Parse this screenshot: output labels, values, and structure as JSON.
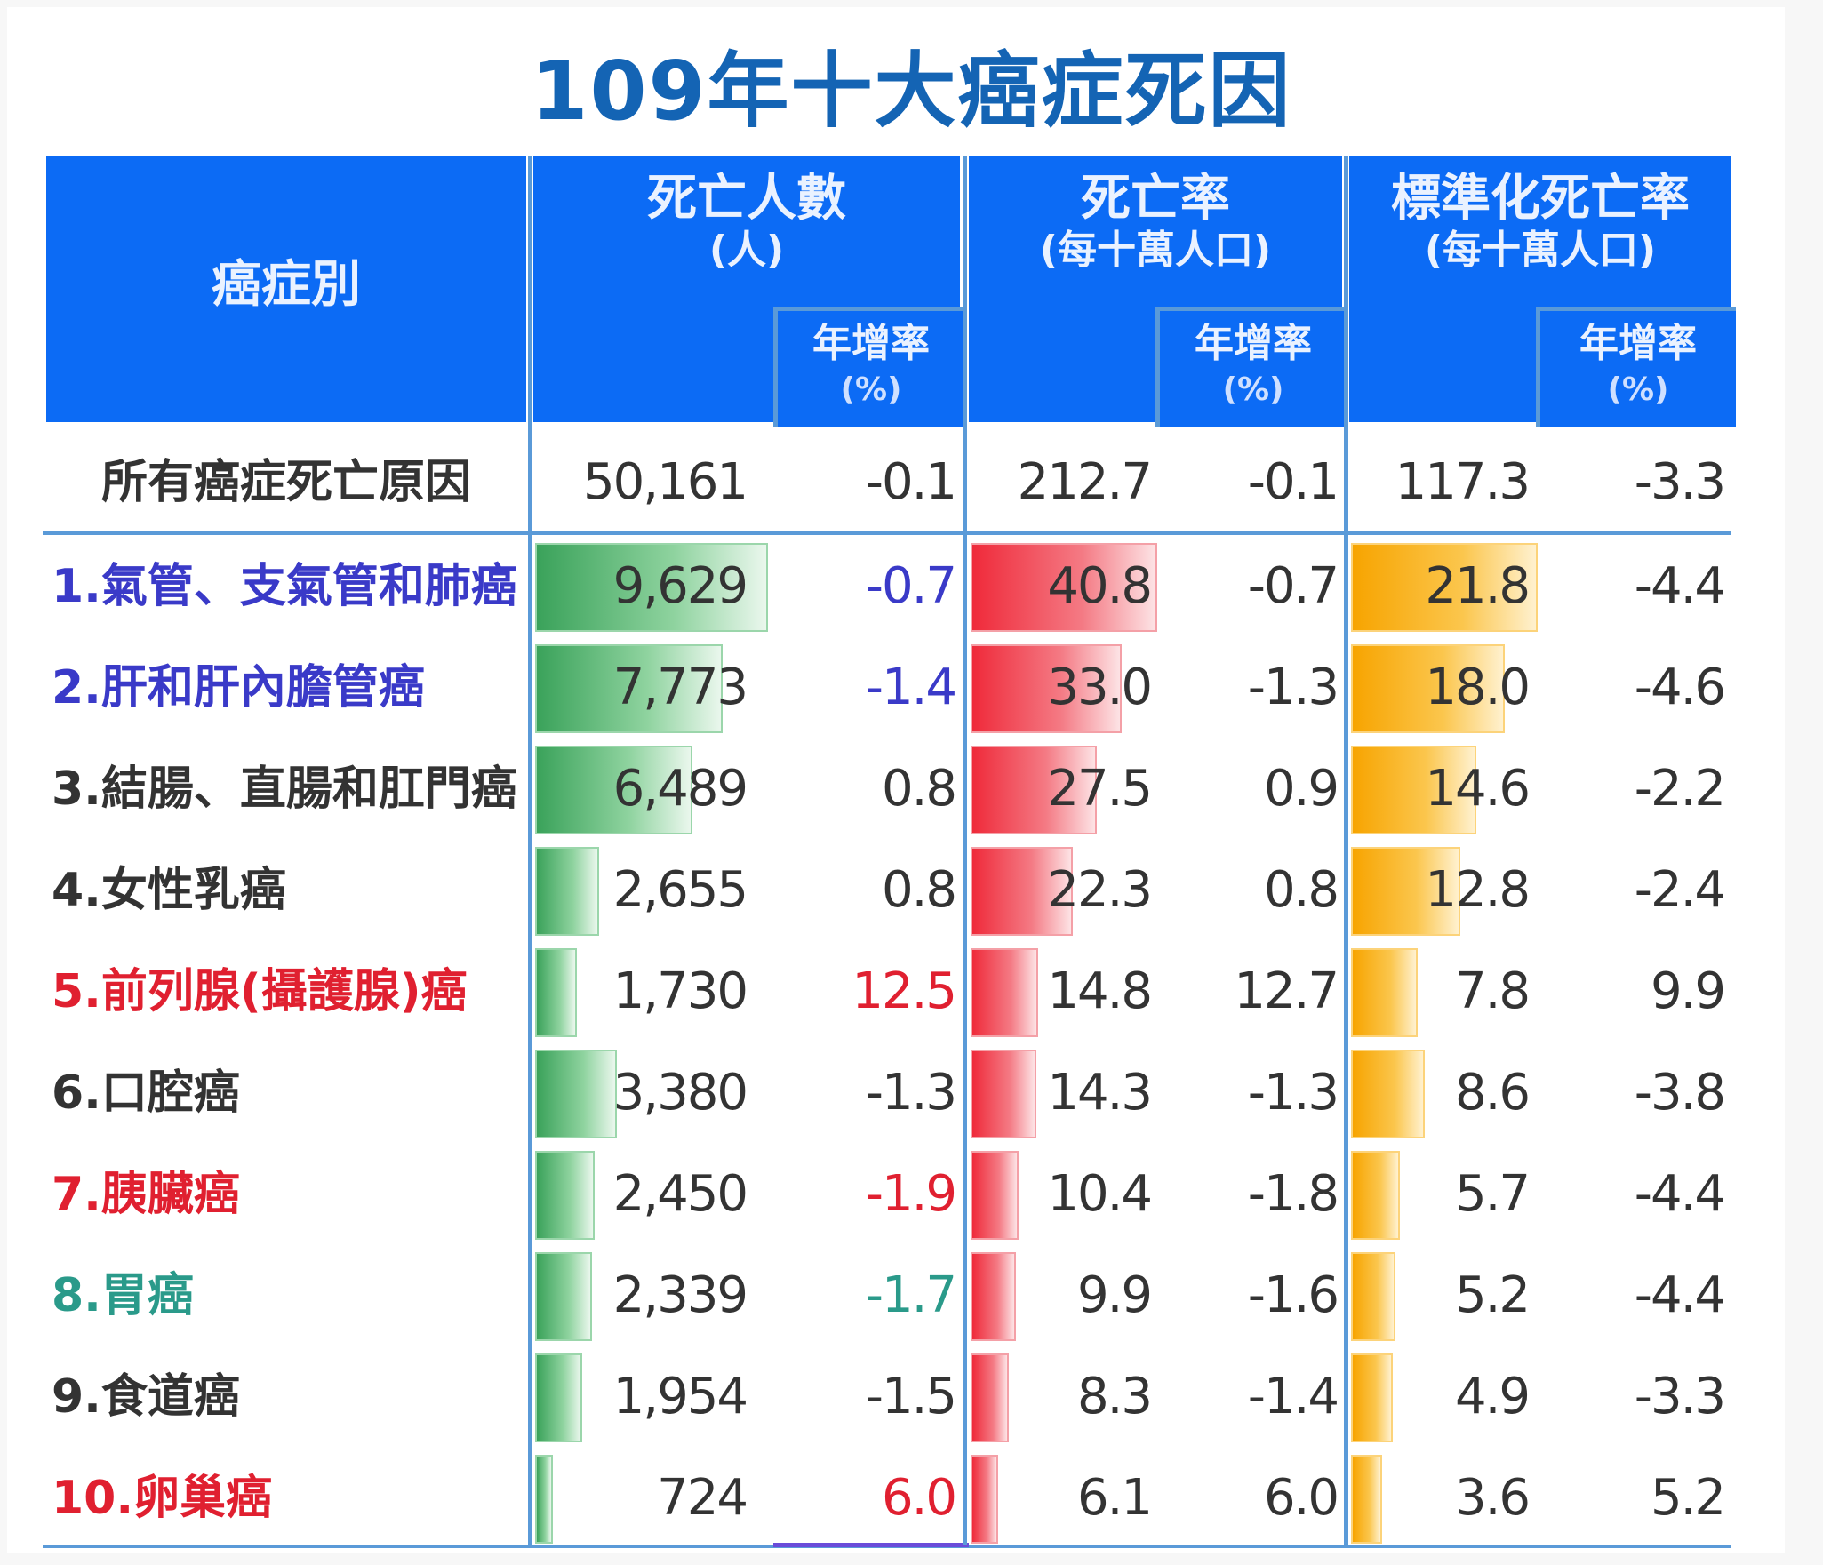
{
  "title": "109年十大癌症死因",
  "colors": {
    "header_bg": "#0c6bf5",
    "title": "#1464b4",
    "green_bar": "#3aa25a",
    "red_bar": "#ef2a3a",
    "orange_bar": "#f7a400",
    "name_blue": "#3a3ac8",
    "name_red": "#e02030",
    "name_teal": "#2a9a8a",
    "text_default": "#333333"
  },
  "headers": {
    "cancer_type": "癌症別",
    "deaths": {
      "line1": "死亡人數",
      "line2": "(人)"
    },
    "rate": {
      "line1": "死亡率",
      "line2": "(每十萬人口)"
    },
    "std_rate": {
      "line1": "標準化死亡率",
      "line2": "(每十萬人口)"
    },
    "growth": {
      "line1": "年增率",
      "line2": "(%)"
    }
  },
  "total_row": {
    "name": "所有癌症死亡原因",
    "deaths": "50,161",
    "deaths_growth": "-0.1",
    "rate": "212.7",
    "rate_growth": "-0.1",
    "std_rate": "117.3",
    "std_rate_growth": "-3.3"
  },
  "chart_data": {
    "type": "table",
    "title": "109年十大癌症死因",
    "columns": [
      "癌症別",
      "死亡人數(人)",
      "年增率(%)",
      "死亡率(每十萬人口)",
      "年增率(%)",
      "標準化死亡率(每十萬人口)",
      "年增率(%)"
    ],
    "rows": [
      {
        "name": "1.氣管、支氣管和肺癌",
        "deaths": 9629,
        "deaths_label": "9,629",
        "deaths_growth": "-0.7",
        "rate": 40.8,
        "rate_label": "40.8",
        "rate_growth": "-0.7",
        "std_rate": 21.8,
        "std_rate_label": "21.8",
        "std_rate_growth": "-4.4",
        "name_color": "#3a3ac8",
        "growth_color": "#3a3ac8"
      },
      {
        "name": "2.肝和肝內膽管癌",
        "deaths": 7773,
        "deaths_label": "7,773",
        "deaths_growth": "-1.4",
        "rate": 33.0,
        "rate_label": "33.0",
        "rate_growth": "-1.3",
        "std_rate": 18.0,
        "std_rate_label": "18.0",
        "std_rate_growth": "-4.6",
        "name_color": "#3a3ac8",
        "growth_color": "#3a3ac8"
      },
      {
        "name": "3.結腸、直腸和肛門癌",
        "deaths": 6489,
        "deaths_label": "6,489",
        "deaths_growth": "0.8",
        "rate": 27.5,
        "rate_label": "27.5",
        "rate_growth": "0.9",
        "std_rate": 14.6,
        "std_rate_label": "14.6",
        "std_rate_growth": "-2.2",
        "name_color": "#333333",
        "growth_color": "#333333"
      },
      {
        "name": "4.女性乳癌",
        "deaths": 2655,
        "deaths_label": "2,655",
        "deaths_growth": "0.8",
        "rate": 22.3,
        "rate_label": "22.3",
        "rate_growth": "0.8",
        "std_rate": 12.8,
        "std_rate_label": "12.8",
        "std_rate_growth": "-2.4",
        "name_color": "#333333",
        "growth_color": "#333333"
      },
      {
        "name": "5.前列腺(攝護腺)癌",
        "deaths": 1730,
        "deaths_label": "1,730",
        "deaths_growth": "12.5",
        "rate": 14.8,
        "rate_label": "14.8",
        "rate_growth": "12.7",
        "std_rate": 7.8,
        "std_rate_label": "7.8",
        "std_rate_growth": "9.9",
        "name_color": "#e02030",
        "growth_color": "#e02030"
      },
      {
        "name": "6.口腔癌",
        "deaths": 3380,
        "deaths_label": "3,380",
        "deaths_growth": "-1.3",
        "rate": 14.3,
        "rate_label": "14.3",
        "rate_growth": "-1.3",
        "std_rate": 8.6,
        "std_rate_label": "8.6",
        "std_rate_growth": "-3.8",
        "name_color": "#333333",
        "growth_color": "#333333"
      },
      {
        "name": "7.胰臟癌",
        "deaths": 2450,
        "deaths_label": "2,450",
        "deaths_growth": "-1.9",
        "rate": 10.4,
        "rate_label": "10.4",
        "rate_growth": "-1.8",
        "std_rate": 5.7,
        "std_rate_label": "5.7",
        "std_rate_growth": "-4.4",
        "name_color": "#e02030",
        "growth_color": "#e02030"
      },
      {
        "name": "8.胃癌",
        "deaths": 2339,
        "deaths_label": "2,339",
        "deaths_growth": "-1.7",
        "rate": 9.9,
        "rate_label": "9.9",
        "rate_growth": "-1.6",
        "std_rate": 5.2,
        "std_rate_label": "5.2",
        "std_rate_growth": "-4.4",
        "name_color": "#2a9a8a",
        "growth_color": "#2a9a8a"
      },
      {
        "name": "9.食道癌",
        "deaths": 1954,
        "deaths_label": "1,954",
        "deaths_growth": "-1.5",
        "rate": 8.3,
        "rate_label": "8.3",
        "rate_growth": "-1.4",
        "std_rate": 4.9,
        "std_rate_label": "4.9",
        "std_rate_growth": "-3.3",
        "name_color": "#333333",
        "growth_color": "#333333"
      },
      {
        "name": "10.卵巢癌",
        "deaths": 724,
        "deaths_label": "724",
        "deaths_growth": "6.0",
        "rate": 6.1,
        "rate_label": "6.1",
        "rate_growth": "6.0",
        "std_rate": 3.6,
        "std_rate_label": "3.6",
        "std_rate_growth": "5.2",
        "name_color": "#e02030",
        "growth_color": "#e02030"
      }
    ]
  }
}
